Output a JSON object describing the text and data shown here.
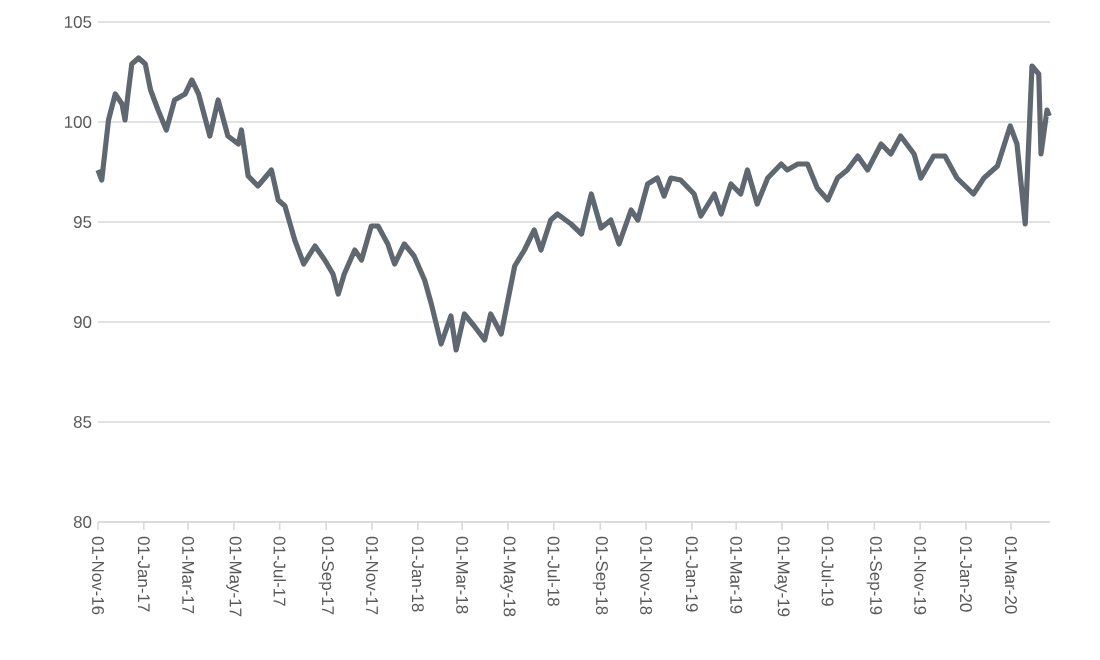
{
  "chart_data": {
    "type": "line",
    "x": [
      "2016-11-01",
      "2016-11-06",
      "2016-11-15",
      "2016-11-24",
      "2016-12-03",
      "2016-12-07",
      "2016-12-11",
      "2016-12-16",
      "2016-12-25",
      "2017-01-03",
      "2017-01-10",
      "2017-01-20",
      "2017-01-31",
      "2017-02-11",
      "2017-02-25",
      "2017-03-06",
      "2017-03-15",
      "2017-03-30",
      "2017-04-10",
      "2017-04-23",
      "2017-05-07",
      "2017-05-11",
      "2017-05-20",
      "2017-06-02",
      "2017-06-20",
      "2017-06-29",
      "2017-07-08",
      "2017-07-21",
      "2017-08-02",
      "2017-08-17",
      "2017-08-30",
      "2017-09-10",
      "2017-09-17",
      "2017-09-25",
      "2017-10-09",
      "2017-10-18",
      "2017-10-31",
      "2017-11-09",
      "2017-11-22",
      "2017-12-01",
      "2017-12-14",
      "2017-12-27",
      "2018-01-10",
      "2018-01-19",
      "2018-02-01",
      "2018-02-14",
      "2018-02-21",
      "2018-03-04",
      "2018-03-17",
      "2018-03-31",
      "2018-04-08",
      "2018-04-22",
      "2018-05-01",
      "2018-05-10",
      "2018-05-23",
      "2018-06-05",
      "2018-06-14",
      "2018-06-27",
      "2018-07-06",
      "2018-07-24",
      "2018-08-07",
      "2018-08-20",
      "2018-09-02",
      "2018-09-15",
      "2018-09-26",
      "2018-10-12",
      "2018-10-21",
      "2018-11-03",
      "2018-11-16",
      "2018-11-25",
      "2018-12-04",
      "2018-12-17",
      "2019-01-04",
      "2019-01-13",
      "2019-01-31",
      "2019-02-09",
      "2019-02-22",
      "2019-03-07",
      "2019-03-16",
      "2019-03-29",
      "2019-04-12",
      "2019-04-30",
      "2019-05-08",
      "2019-05-22",
      "2019-06-04",
      "2019-06-17",
      "2019-07-01",
      "2019-07-14",
      "2019-07-27",
      "2019-08-10",
      "2019-08-23",
      "2019-09-10",
      "2019-09-23",
      "2019-10-06",
      "2019-10-24",
      "2019-11-02",
      "2019-11-19",
      "2019-12-04",
      "2019-12-20",
      "2020-01-11",
      "2020-01-25",
      "2020-02-12",
      "2020-02-29",
      "2020-03-09",
      "2020-03-20",
      "2020-03-29",
      "2020-04-07",
      "2020-04-10",
      "2020-04-18",
      "2020-04-21"
    ],
    "series": [
      {
        "color": "#5f6770",
        "values": [
          97.6,
          97.1,
          100.1,
          101.4,
          100.9,
          100.1,
          101.4,
          102.9,
          103.2,
          102.9,
          101.6,
          100.6,
          99.6,
          101.1,
          101.4,
          102.1,
          101.4,
          99.3,
          101.1,
          99.3,
          98.9,
          99.6,
          97.3,
          96.8,
          97.6,
          96.1,
          95.8,
          94.1,
          92.9,
          93.8,
          93.1,
          92.4,
          91.4,
          92.4,
          93.6,
          93.1,
          94.8,
          94.8,
          93.9,
          92.9,
          93.9,
          93.3,
          92.1,
          90.9,
          88.9,
          90.3,
          88.6,
          90.4,
          89.8,
          89.1,
          90.4,
          89.4,
          91.1,
          92.8,
          93.6,
          94.6,
          93.6,
          95.1,
          95.4,
          94.9,
          94.4,
          96.4,
          94.7,
          95.1,
          93.9,
          95.6,
          95.1,
          96.9,
          97.2,
          96.3,
          97.2,
          97.1,
          96.4,
          95.3,
          96.4,
          95.4,
          96.9,
          96.4,
          97.6,
          95.9,
          97.2,
          97.9,
          97.6,
          97.9,
          97.9,
          96.7,
          96.1,
          97.2,
          97.6,
          98.3,
          97.6,
          98.9,
          98.4,
          99.3,
          98.4,
          97.2,
          98.3,
          98.3,
          97.2,
          96.4,
          97.2,
          97.8,
          99.8,
          98.9,
          94.9,
          102.8,
          102.4,
          98.4,
          100.6,
          100.3
        ]
      }
    ],
    "xlim": [
      "2016-11-01",
      "2020-04-22"
    ],
    "xticks": [
      {
        "value": "2016-11-01",
        "label": "01-Nov-16"
      },
      {
        "value": "2017-01-01",
        "label": "01-Jan-17"
      },
      {
        "value": "2017-03-01",
        "label": "01-Mar-17"
      },
      {
        "value": "2017-05-01",
        "label": "01-May-17"
      },
      {
        "value": "2017-07-01",
        "label": "01-Jul-17"
      },
      {
        "value": "2017-09-01",
        "label": "01-Sep-17"
      },
      {
        "value": "2017-11-01",
        "label": "01-Nov-17"
      },
      {
        "value": "2018-01-01",
        "label": "01-Jan-18"
      },
      {
        "value": "2018-03-01",
        "label": "01-Mar-18"
      },
      {
        "value": "2018-05-01",
        "label": "01-May-18"
      },
      {
        "value": "2018-07-01",
        "label": "01-Jul-18"
      },
      {
        "value": "2018-09-01",
        "label": "01-Sep-18"
      },
      {
        "value": "2018-11-01",
        "label": "01-Nov-18"
      },
      {
        "value": "2019-01-01",
        "label": "01-Jan-19"
      },
      {
        "value": "2019-03-01",
        "label": "01-Mar-19"
      },
      {
        "value": "2019-05-01",
        "label": "01-May-19"
      },
      {
        "value": "2019-07-01",
        "label": "01-Jul-19"
      },
      {
        "value": "2019-09-01",
        "label": "01-Sep-19"
      },
      {
        "value": "2019-11-01",
        "label": "01-Nov-19"
      },
      {
        "value": "2020-01-01",
        "label": "01-Jan-20"
      },
      {
        "value": "2020-03-01",
        "label": "01-Mar-20"
      }
    ],
    "ylim": [
      80,
      105
    ],
    "yticks": [
      80,
      85,
      90,
      95,
      100,
      105
    ],
    "grid": "y",
    "legend": false,
    "line_style": "solid"
  }
}
